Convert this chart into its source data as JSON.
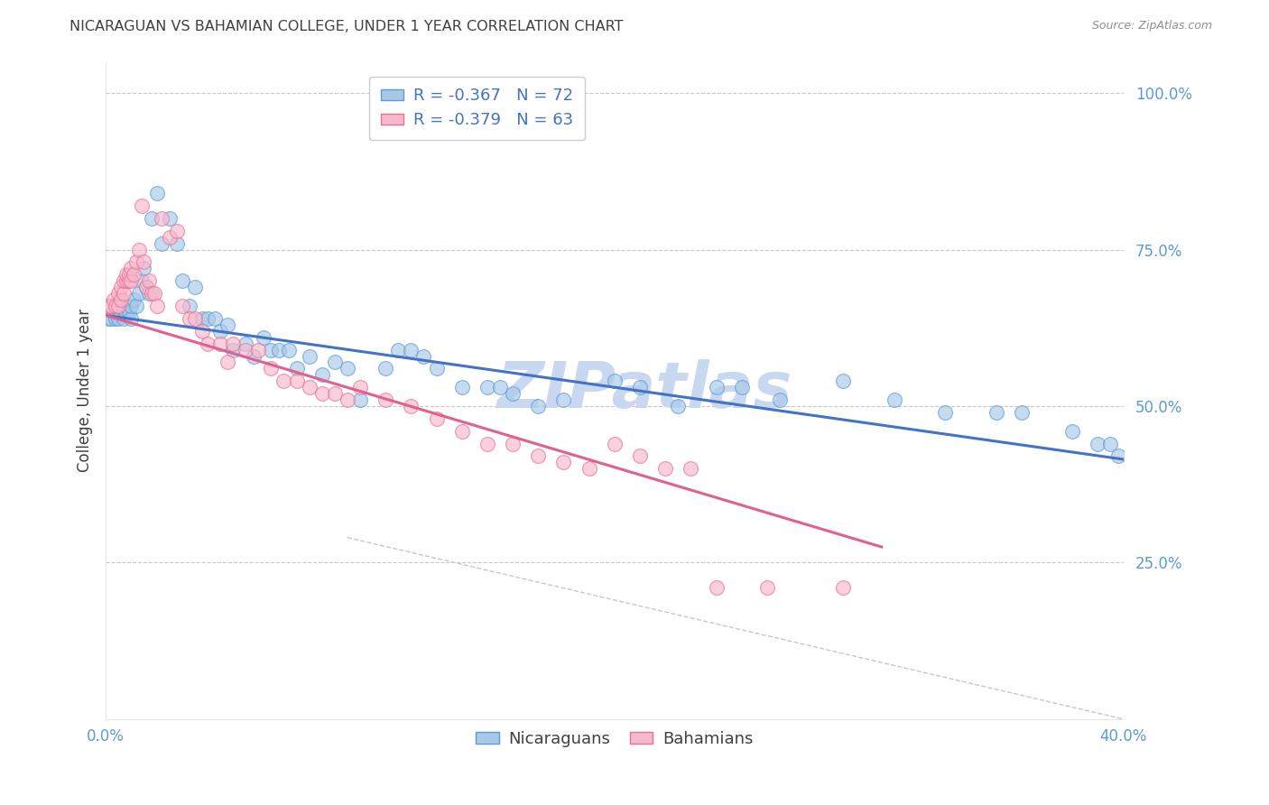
{
  "title": "NICARAGUAN VS BAHAMIAN COLLEGE, UNDER 1 YEAR CORRELATION CHART",
  "source": "Source: ZipAtlas.com",
  "ylabel": "College, Under 1 year",
  "legend_entry1": "R = -0.367   N = 72",
  "legend_entry2": "R = -0.379   N = 63",
  "legend_group1": "Nicaraguans",
  "legend_group2": "Bahamians",
  "watermark": "ZIPatlas",
  "blue_color": "#a8c8e8",
  "pink_color": "#f8b8cc",
  "blue_edge_color": "#5b9bd5",
  "pink_edge_color": "#e87090",
  "blue_line_color": "#4472c4",
  "pink_line_color": "#e06090",
  "axis_color": "#5b9bd5",
  "grid_color": "#c8c8c8",
  "title_color": "#404040",
  "source_color": "#909090",
  "watermark_color": "#c8d8f0",
  "x_min": 0.0,
  "x_max": 0.4,
  "y_min": 0.0,
  "y_max": 1.05,
  "nic_scatter_x": [
    0.001,
    0.002,
    0.003,
    0.004,
    0.005,
    0.006,
    0.006,
    0.007,
    0.007,
    0.008,
    0.009,
    0.01,
    0.01,
    0.011,
    0.012,
    0.013,
    0.014,
    0.015,
    0.016,
    0.017,
    0.018,
    0.02,
    0.022,
    0.025,
    0.028,
    0.03,
    0.033,
    0.035,
    0.038,
    0.04,
    0.043,
    0.045,
    0.048,
    0.05,
    0.055,
    0.058,
    0.062,
    0.065,
    0.068,
    0.072,
    0.075,
    0.08,
    0.085,
    0.09,
    0.095,
    0.1,
    0.11,
    0.115,
    0.12,
    0.125,
    0.13,
    0.14,
    0.15,
    0.155,
    0.16,
    0.17,
    0.18,
    0.2,
    0.21,
    0.225,
    0.24,
    0.25,
    0.265,
    0.29,
    0.31,
    0.33,
    0.35,
    0.36,
    0.38,
    0.39,
    0.395,
    0.398
  ],
  "nic_scatter_y": [
    0.64,
    0.64,
    0.65,
    0.64,
    0.64,
    0.65,
    0.66,
    0.64,
    0.655,
    0.645,
    0.65,
    0.64,
    0.66,
    0.67,
    0.66,
    0.68,
    0.7,
    0.72,
    0.69,
    0.68,
    0.8,
    0.84,
    0.76,
    0.8,
    0.76,
    0.7,
    0.66,
    0.69,
    0.64,
    0.64,
    0.64,
    0.62,
    0.63,
    0.59,
    0.6,
    0.58,
    0.61,
    0.59,
    0.59,
    0.59,
    0.56,
    0.58,
    0.55,
    0.57,
    0.56,
    0.51,
    0.56,
    0.59,
    0.59,
    0.58,
    0.56,
    0.53,
    0.53,
    0.53,
    0.52,
    0.5,
    0.51,
    0.54,
    0.53,
    0.5,
    0.53,
    0.53,
    0.51,
    0.54,
    0.51,
    0.49,
    0.49,
    0.49,
    0.46,
    0.44,
    0.44,
    0.42
  ],
  "bah_scatter_x": [
    0.001,
    0.002,
    0.003,
    0.004,
    0.005,
    0.005,
    0.006,
    0.006,
    0.007,
    0.007,
    0.008,
    0.008,
    0.009,
    0.009,
    0.01,
    0.01,
    0.011,
    0.012,
    0.013,
    0.014,
    0.015,
    0.016,
    0.017,
    0.018,
    0.019,
    0.02,
    0.022,
    0.025,
    0.028,
    0.03,
    0.033,
    0.035,
    0.038,
    0.04,
    0.045,
    0.048,
    0.05,
    0.055,
    0.06,
    0.065,
    0.07,
    0.075,
    0.08,
    0.085,
    0.09,
    0.095,
    0.1,
    0.11,
    0.12,
    0.13,
    0.14,
    0.15,
    0.16,
    0.17,
    0.18,
    0.19,
    0.2,
    0.21,
    0.22,
    0.23,
    0.24,
    0.26,
    0.29
  ],
  "bah_scatter_y": [
    0.66,
    0.66,
    0.67,
    0.66,
    0.66,
    0.68,
    0.67,
    0.69,
    0.68,
    0.7,
    0.7,
    0.71,
    0.7,
    0.71,
    0.7,
    0.72,
    0.71,
    0.73,
    0.75,
    0.82,
    0.73,
    0.69,
    0.7,
    0.68,
    0.68,
    0.66,
    0.8,
    0.77,
    0.78,
    0.66,
    0.64,
    0.64,
    0.62,
    0.6,
    0.6,
    0.57,
    0.6,
    0.59,
    0.59,
    0.56,
    0.54,
    0.54,
    0.53,
    0.52,
    0.52,
    0.51,
    0.53,
    0.51,
    0.5,
    0.48,
    0.46,
    0.44,
    0.44,
    0.42,
    0.41,
    0.4,
    0.44,
    0.42,
    0.4,
    0.4,
    0.21,
    0.21,
    0.21
  ],
  "nic_line_x": [
    0.0,
    0.4
  ],
  "nic_line_y": [
    0.645,
    0.415
  ],
  "bah_line_x": [
    0.0,
    0.305
  ],
  "bah_line_y": [
    0.645,
    0.275
  ],
  "diag_line_x": [
    0.095,
    0.4
  ],
  "diag_line_y": [
    0.29,
    0.0
  ]
}
